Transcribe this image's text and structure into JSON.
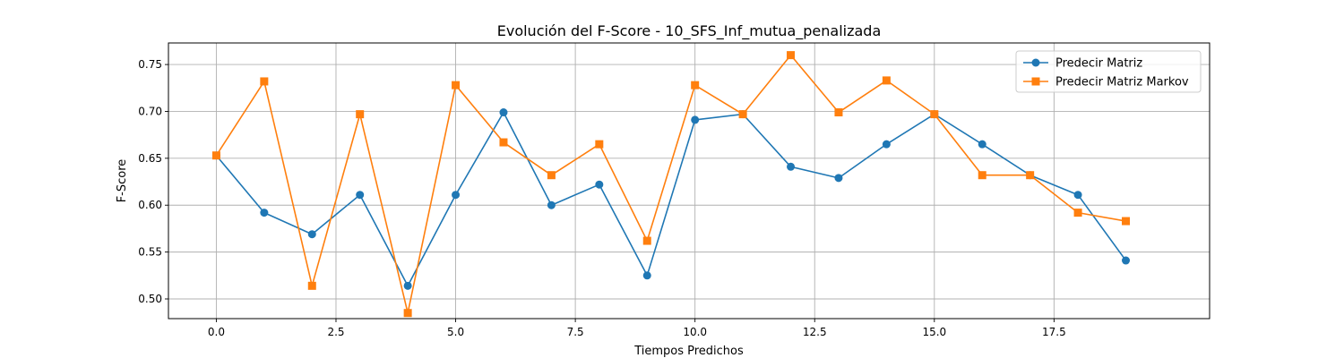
{
  "chart_data": {
    "type": "line",
    "title": "Evolución del F-Score - 10_SFS_Inf_mutua_penalizada",
    "xlabel": "Tiempos Predichos",
    "ylabel": "F-Score",
    "xlim": [
      -1,
      20.75
    ],
    "ylim": [
      0.479,
      0.773
    ],
    "x": [
      0,
      1,
      2,
      3,
      4,
      5,
      6,
      7,
      8,
      9,
      10,
      11,
      12,
      13,
      14,
      15,
      16,
      17,
      18,
      19
    ],
    "x_ticks": [
      0.0,
      2.5,
      5.0,
      7.5,
      10.0,
      12.5,
      15.0,
      17.5
    ],
    "x_tick_labels": [
      "0.0",
      "2.5",
      "5.0",
      "7.5",
      "10.0",
      "12.5",
      "15.0",
      "17.5"
    ],
    "y_ticks": [
      0.5,
      0.55,
      0.6,
      0.65,
      0.7,
      0.75
    ],
    "y_tick_labels": [
      "0.50",
      "0.55",
      "0.60",
      "0.65",
      "0.70",
      "0.75"
    ],
    "grid": true,
    "legend_position": "top-right",
    "series": [
      {
        "name": "Predecir Matriz",
        "color": "#1f77b4",
        "marker": "circle",
        "values": [
          0.653,
          0.592,
          0.569,
          0.611,
          0.514,
          0.611,
          0.699,
          0.6,
          0.622,
          0.525,
          0.691,
          0.697,
          0.641,
          0.629,
          0.665,
          0.697,
          0.665,
          0.632,
          0.611,
          0.541
        ]
      },
      {
        "name": "Predecir Matriz Markov",
        "color": "#ff7f0e",
        "marker": "square",
        "values": [
          0.653,
          0.732,
          0.514,
          0.697,
          0.485,
          0.728,
          0.667,
          0.632,
          0.665,
          0.562,
          0.728,
          0.697,
          0.76,
          0.699,
          0.733,
          0.697,
          0.632,
          0.632,
          0.592,
          0.583
        ]
      }
    ]
  }
}
